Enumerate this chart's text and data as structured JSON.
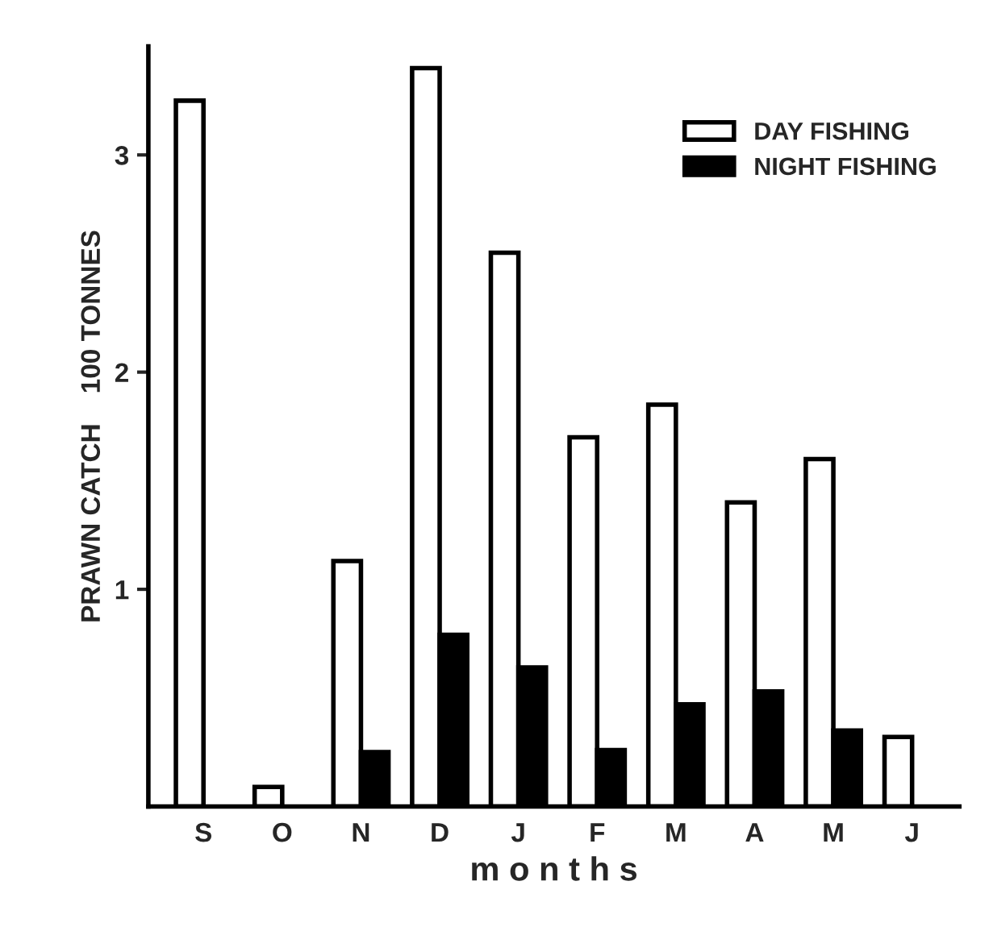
{
  "chart_data": {
    "type": "bar",
    "xlabel": "m o n t h s",
    "ylabel": "PRAWN CATCH    100 TONNES",
    "categories": [
      "S",
      "O",
      "N",
      "D",
      "J",
      "F",
      "M",
      "A",
      "M",
      "J"
    ],
    "series": [
      {
        "name": "DAY FISHING",
        "color": "#ffffff",
        "values": [
          3.25,
          0.09,
          1.13,
          3.4,
          2.55,
          1.7,
          1.85,
          1.4,
          1.6,
          0.32
        ]
      },
      {
        "name": "NIGHT FISHING",
        "color": "#000000",
        "values": [
          null,
          null,
          0.25,
          0.79,
          0.64,
          0.26,
          0.47,
          0.53,
          0.35,
          null
        ]
      }
    ],
    "ylim": [
      0,
      3.5
    ],
    "yticks": [
      1,
      2,
      3
    ],
    "grid": false,
    "legend": "top right"
  }
}
